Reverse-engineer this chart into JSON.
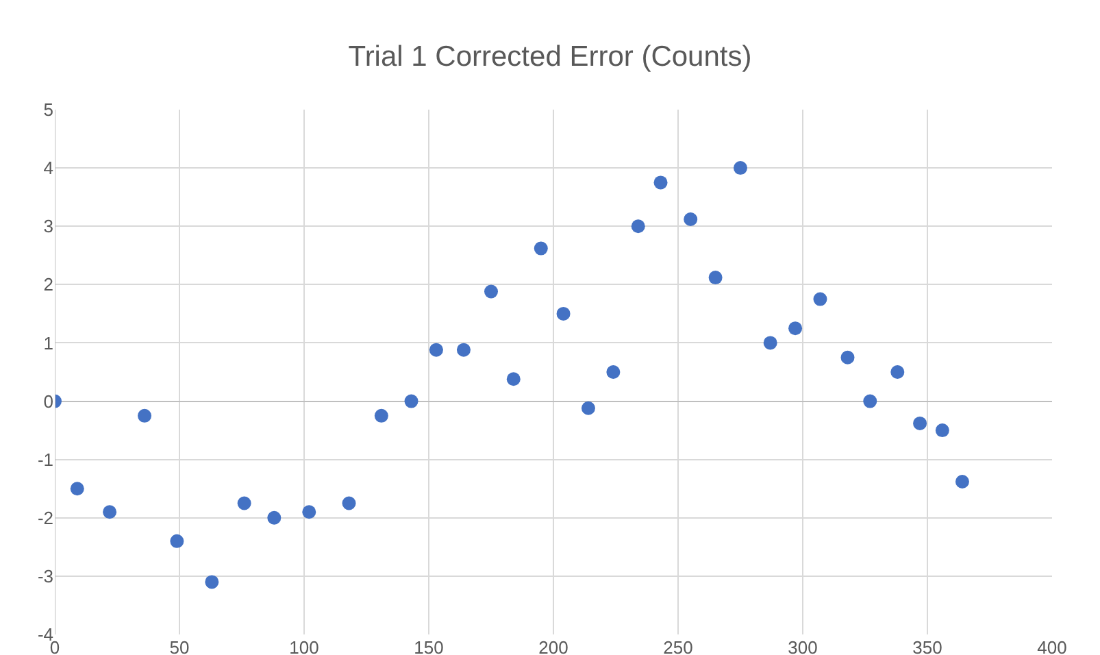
{
  "chart_data": {
    "type": "scatter",
    "title": "Trial 1 Corrected Error (Counts)",
    "x": [
      0,
      9,
      22,
      36,
      49,
      63,
      76,
      88,
      102,
      118,
      131,
      143,
      153,
      164,
      175,
      184,
      195,
      204,
      214,
      224,
      234,
      243,
      255,
      265,
      275,
      287,
      297,
      307,
      318,
      327,
      338,
      347,
      356,
      364
    ],
    "values": [
      0,
      -1.5,
      -1.9,
      -0.25,
      -2.4,
      -3.1,
      -1.75,
      -2,
      -1.9,
      -1.75,
      -0.25,
      0,
      0.88,
      0.88,
      1.88,
      0.38,
      2.62,
      1.5,
      -0.12,
      0.5,
      3,
      3.75,
      3.12,
      2.12,
      4,
      1,
      1.25,
      1.75,
      0.75,
      0,
      0.5,
      -0.38,
      -0.5,
      -1.38
    ],
    "color": "#4472c4",
    "marker": "circle",
    "xlim": [
      0,
      400
    ],
    "xticks": [
      0,
      50,
      100,
      150,
      200,
      250,
      300,
      350,
      400
    ],
    "ylim": [
      -4,
      5
    ],
    "yticks": [
      -4,
      -3,
      -2,
      -1,
      0,
      1,
      2,
      3,
      4,
      5
    ],
    "grid": true
  }
}
